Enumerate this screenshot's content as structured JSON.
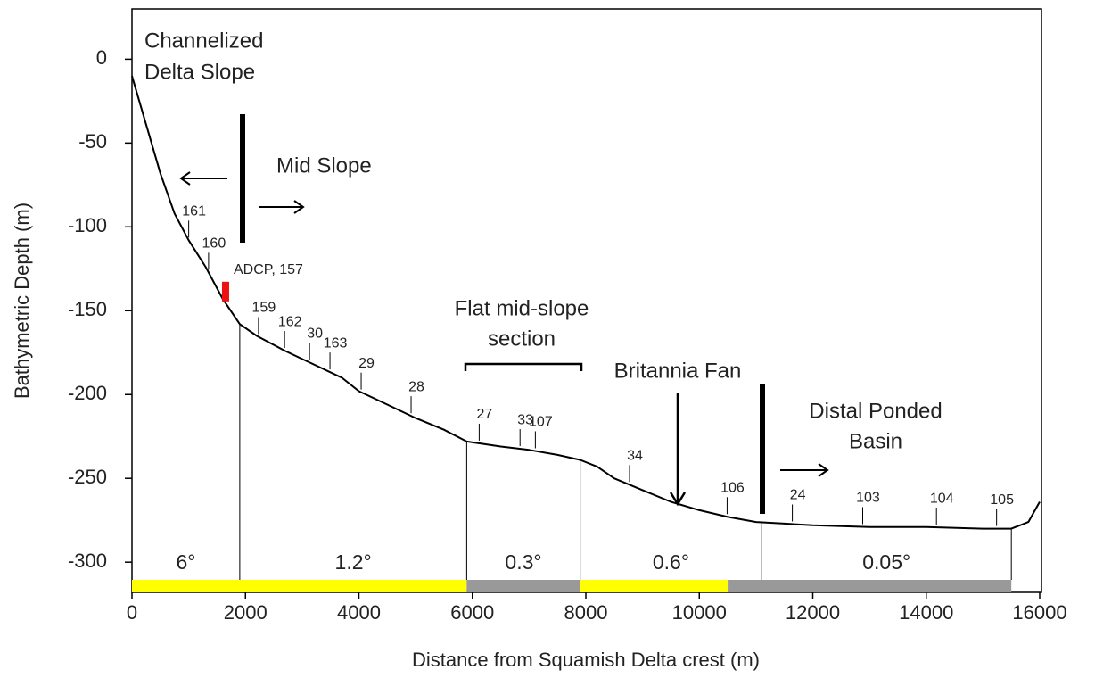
{
  "chart_data": {
    "type": "line",
    "x_label": "Distance from Squamish Delta crest (m)",
    "y_label": "Bathymetric Depth (m)",
    "xlim": [
      0,
      16000
    ],
    "ylim": [
      -318,
      30
    ],
    "xticks": [
      0,
      2000,
      4000,
      6000,
      8000,
      10000,
      12000,
      14000,
      16000
    ],
    "yticks": [
      0,
      -50,
      -100,
      -150,
      -200,
      -250,
      -300
    ],
    "x": [
      0,
      250,
      500,
      750,
      1000,
      1300,
      1600,
      1900,
      2200,
      2700,
      3200,
      3700,
      4000,
      4500,
      5000,
      5500,
      5900,
      6500,
      7000,
      7500,
      7900,
      8200,
      8500,
      9000,
      9500,
      10000,
      10500,
      11000,
      11500,
      12000,
      13000,
      14000,
      15000,
      15500,
      15800,
      16000
    ],
    "series": [
      {
        "color": "#000000",
        "values": [
          -10,
          -39,
          -68,
          -92,
          -108,
          -124,
          -143,
          -158,
          -165,
          -174,
          -182,
          -190,
          -198,
          -206,
          -214,
          -221,
          -228,
          -231,
          -233,
          -236,
          -239,
          -243,
          -250,
          -257,
          -264,
          -269,
          -273,
          -276,
          -277,
          -278,
          -279,
          -279,
          -280,
          -280,
          -276,
          -264
        ]
      }
    ],
    "stations": [
      {
        "label": "161",
        "x": 1000
      },
      {
        "label": "160",
        "x": 1350
      },
      {
        "label": "159",
        "x": 2230
      },
      {
        "label": "162",
        "x": 2690
      },
      {
        "label": "30",
        "x": 3130
      },
      {
        "label": "163",
        "x": 3490
      },
      {
        "label": "29",
        "x": 4040
      },
      {
        "label": "28",
        "x": 4920
      },
      {
        "label": "27",
        "x": 6120
      },
      {
        "label": "33",
        "x": 6840
      },
      {
        "label": "107",
        "x": 7110
      },
      {
        "label": "34",
        "x": 8770
      },
      {
        "label": "106",
        "x": 10490
      },
      {
        "label": "24",
        "x": 11640
      },
      {
        "label": "103",
        "x": 12880
      },
      {
        "label": "104",
        "x": 14180
      },
      {
        "label": "105",
        "x": 15240
      }
    ],
    "adcp": {
      "label": "ADCP, 157",
      "x": 1650,
      "color": "#ee1111"
    },
    "slope_zones": [
      {
        "label": "6°",
        "start": 0,
        "end": 1900
      },
      {
        "label": "1.2°",
        "start": 1900,
        "end": 5900
      },
      {
        "label": "0.3°",
        "start": 5900,
        "end": 7900
      },
      {
        "label": "0.6°",
        "start": 7900,
        "end": 11100
      },
      {
        "label": "0.05°",
        "start": 11100,
        "end": 15500
      }
    ],
    "bar_segments": [
      {
        "start": 0,
        "end": 5900,
        "color": "#ffff00"
      },
      {
        "start": 5900,
        "end": 7900,
        "color": "#999999"
      },
      {
        "start": 7900,
        "end": 10500,
        "color": "#ffff00"
      },
      {
        "start": 10500,
        "end": 15500,
        "color": "#999999"
      }
    ],
    "annotations": [
      {
        "lines": [
          "Channelized",
          "Delta Slope"
        ]
      },
      {
        "lines": [
          "Mid Slope"
        ]
      },
      {
        "lines": [
          "Flat mid-slope",
          "section"
        ]
      },
      {
        "lines": [
          "Britannia Fan"
        ]
      },
      {
        "lines": [
          "Distal Ponded",
          "Basin"
        ]
      }
    ]
  }
}
